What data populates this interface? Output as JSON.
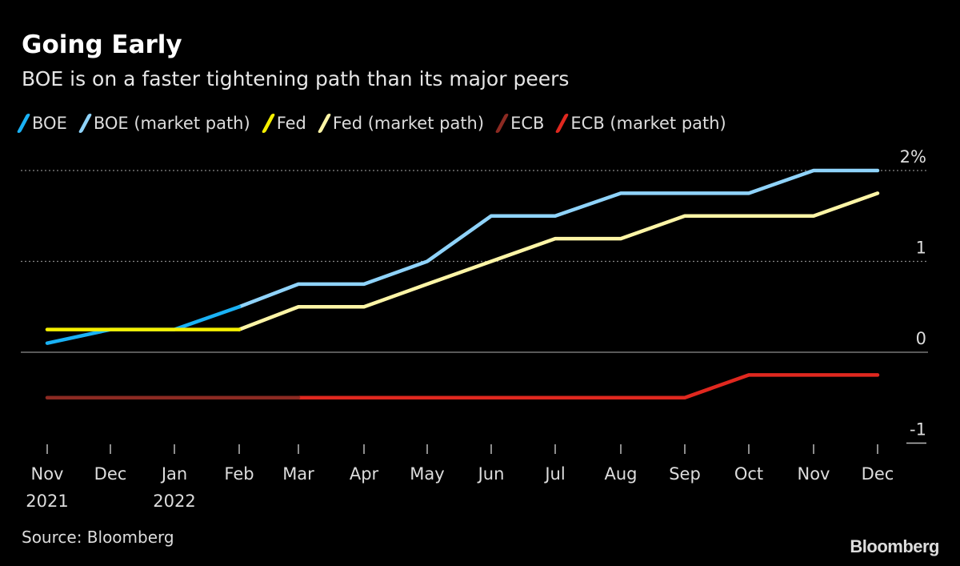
{
  "chart_data": {
    "type": "line",
    "title": "Going Early",
    "subtitle": "BOE is on a faster tightening path than its major peers",
    "x": [
      "Nov",
      "Dec",
      "Jan",
      "Feb",
      "Mar",
      "Apr",
      "May",
      "Jun",
      "Jul",
      "Aug",
      "Sep",
      "Oct",
      "Nov",
      "Dec"
    ],
    "x_tick_labels": [
      [
        "Nov",
        "2021"
      ],
      [
        "Dec",
        ""
      ],
      [
        "Jan",
        "2022"
      ],
      [
        "Feb",
        ""
      ],
      [
        "Mar",
        ""
      ],
      [
        "Apr",
        ""
      ],
      [
        "May",
        ""
      ],
      [
        "Jun",
        ""
      ],
      [
        "Jul",
        ""
      ],
      [
        "Aug",
        ""
      ],
      [
        "Sep",
        ""
      ],
      [
        "Oct",
        ""
      ],
      [
        "Nov",
        ""
      ],
      [
        "Dec",
        ""
      ]
    ],
    "y_ticks": [
      {
        "value": 2,
        "label": "2%"
      },
      {
        "value": 1,
        "label": "1"
      },
      {
        "value": 0,
        "label": "0"
      },
      {
        "value": -1,
        "label": "-1"
      }
    ],
    "ylim": [
      -1,
      2
    ],
    "ylabel": "",
    "xlabel": "",
    "legend_position": "top",
    "series": [
      {
        "name": "BOE",
        "color": "#1ab2f5",
        "values": [
          0.1,
          0.25,
          0.25,
          0.5,
          null,
          null,
          null,
          null,
          null,
          null,
          null,
          null,
          null,
          null
        ]
      },
      {
        "name": "BOE (market path)",
        "color": "#8fd3fa",
        "values": [
          null,
          null,
          null,
          0.5,
          0.75,
          0.75,
          1.0,
          1.5,
          1.5,
          1.75,
          1.75,
          1.75,
          2.0,
          2.0
        ]
      },
      {
        "name": "Fed",
        "color": "#f5f000",
        "values": [
          0.25,
          0.25,
          0.25,
          0.25,
          null,
          null,
          null,
          null,
          null,
          null,
          null,
          null,
          null,
          null
        ]
      },
      {
        "name": "Fed (market path)",
        "color": "#fdf5a6",
        "values": [
          null,
          null,
          null,
          0.25,
          0.5,
          0.5,
          0.75,
          1.0,
          1.25,
          1.25,
          1.5,
          1.5,
          1.5,
          1.75
        ]
      },
      {
        "name": "ECB",
        "color": "#8c2a22",
        "values": [
          -0.5,
          -0.5,
          -0.5,
          -0.5,
          -0.5,
          null,
          null,
          null,
          null,
          null,
          null,
          null,
          null,
          null
        ]
      },
      {
        "name": "ECB (market path)",
        "color": "#e0281f",
        "values": [
          null,
          null,
          null,
          null,
          -0.5,
          -0.5,
          -0.5,
          -0.5,
          -0.5,
          -0.5,
          -0.5,
          -0.25,
          -0.25,
          -0.25
        ]
      }
    ]
  },
  "source": "Source: Bloomberg",
  "brand": "Bloomberg"
}
